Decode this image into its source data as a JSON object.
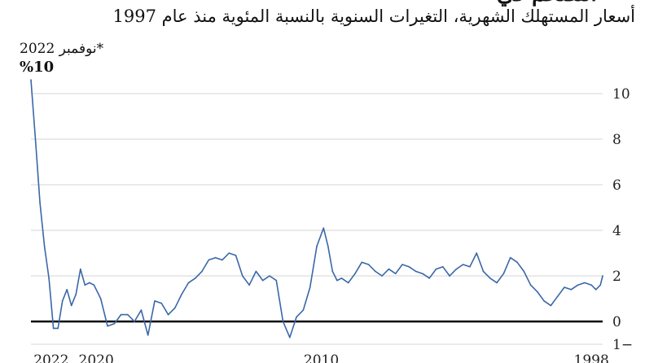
{
  "header": {
    "title_fragment": "التضخم في",
    "subtitle": "أسعار المستهلك الشهرية، التغيرات السنوية بالنسبة المئوية منذ عام 1997",
    "corner_note": "*نوفمبر 2022",
    "corner_unit": "%10"
  },
  "colors": {
    "series": "#3a67a8",
    "zero_line": "#000000",
    "grid": "#d6d6d6"
  },
  "chart_data": {
    "type": "line",
    "title": "",
    "subtitle": "أسعار المستهلك الشهرية، التغيرات السنوية بالنسبة المئوية منذ عام 1997",
    "xlabel": "",
    "ylabel": "",
    "x_direction": "right-to-left",
    "xlim": [
      1997.5,
      2022.9
    ],
    "ylim": [
      -1,
      10.7
    ],
    "yticks": [
      {
        "value": 10,
        "label": "10"
      },
      {
        "value": 8,
        "label": "8"
      },
      {
        "value": 6,
        "label": "6"
      },
      {
        "value": 4,
        "label": "4"
      },
      {
        "value": 2,
        "label": "2"
      },
      {
        "value": 0,
        "label": "0"
      },
      {
        "value": -1,
        "label": "1−"
      }
    ],
    "xticks": [
      {
        "value": 1998,
        "label": "1998"
      },
      {
        "value": 2010,
        "label": "2010"
      },
      {
        "value": 2020,
        "label": "2020"
      },
      {
        "value": 2022,
        "label": "2022"
      }
    ],
    "grid": true,
    "series": [
      {
        "x": [
          1997.5,
          1997.6,
          1997.8,
          1998.0,
          1998.3,
          1998.6,
          1998.9,
          1999.2,
          1999.5,
          1999.8,
          2000.1,
          2000.4,
          2000.7,
          2001.0,
          2001.3,
          2001.6,
          2001.9,
          2002.2,
          2002.5,
          2002.8,
          2003.1,
          2003.4,
          2003.7,
          2004.0,
          2004.3,
          2004.6,
          2004.9,
          2005.2,
          2005.5,
          2005.8,
          2006.1,
          2006.4,
          2006.7,
          2007.0,
          2007.3,
          2007.6,
          2007.9,
          2008.2,
          2008.5,
          2008.8,
          2009.1,
          2009.3,
          2009.5,
          2009.7,
          2009.9,
          2010.2,
          2010.5,
          2010.8,
          2011.1,
          2011.4,
          2011.7,
          2012.0,
          2012.3,
          2012.6,
          2012.9,
          2013.2,
          2013.5,
          2013.8,
          2014.1,
          2014.4,
          2014.7,
          2015.0,
          2015.3,
          2015.6,
          2015.9,
          2016.2,
          2016.5,
          2016.8,
          2017.1,
          2017.4,
          2017.7,
          2018.0,
          2018.3,
          2018.6,
          2018.9,
          2019.2,
          2019.5,
          2019.8,
          2020.1,
          2020.3,
          2020.5,
          2020.7,
          2020.9,
          2021.1,
          2021.3,
          2021.5,
          2021.7,
          2021.9,
          2022.1,
          2022.3,
          2022.5,
          2022.7,
          2022.9
        ],
        "values": [
          2.0,
          1.6,
          1.4,
          1.6,
          1.7,
          1.6,
          1.4,
          1.5,
          1.1,
          0.7,
          0.9,
          1.3,
          1.6,
          2.2,
          2.6,
          2.8,
          2.1,
          1.7,
          1.9,
          2.2,
          3.0,
          2.4,
          2.5,
          2.3,
          2.0,
          2.4,
          2.3,
          1.9,
          2.1,
          2.2,
          2.4,
          2.5,
          2.1,
          2.3,
          2.0,
          2.2,
          2.5,
          2.6,
          2.1,
          1.7,
          1.9,
          1.8,
          2.2,
          3.3,
          4.1,
          3.3,
          1.5,
          0.5,
          0.2,
          -0.7,
          0.0,
          1.8,
          2.0,
          1.8,
          2.2,
          1.6,
          2.0,
          2.9,
          3.0,
          2.7,
          2.8,
          2.7,
          2.2,
          1.9,
          1.7,
          1.2,
          0.6,
          0.3,
          0.8,
          0.9,
          -0.6,
          0.5,
          0.0,
          0.3,
          0.3,
          -0.1,
          -0.2,
          1.0,
          1.6,
          1.7,
          1.6,
          2.3,
          1.2,
          0.7,
          1.4,
          0.9,
          -0.3,
          -0.3,
          1.9,
          3.3,
          5.2,
          8.0,
          10.6
        ]
      }
    ],
    "annotations": [
      "*نوفمبر 2022",
      "%10"
    ]
  }
}
